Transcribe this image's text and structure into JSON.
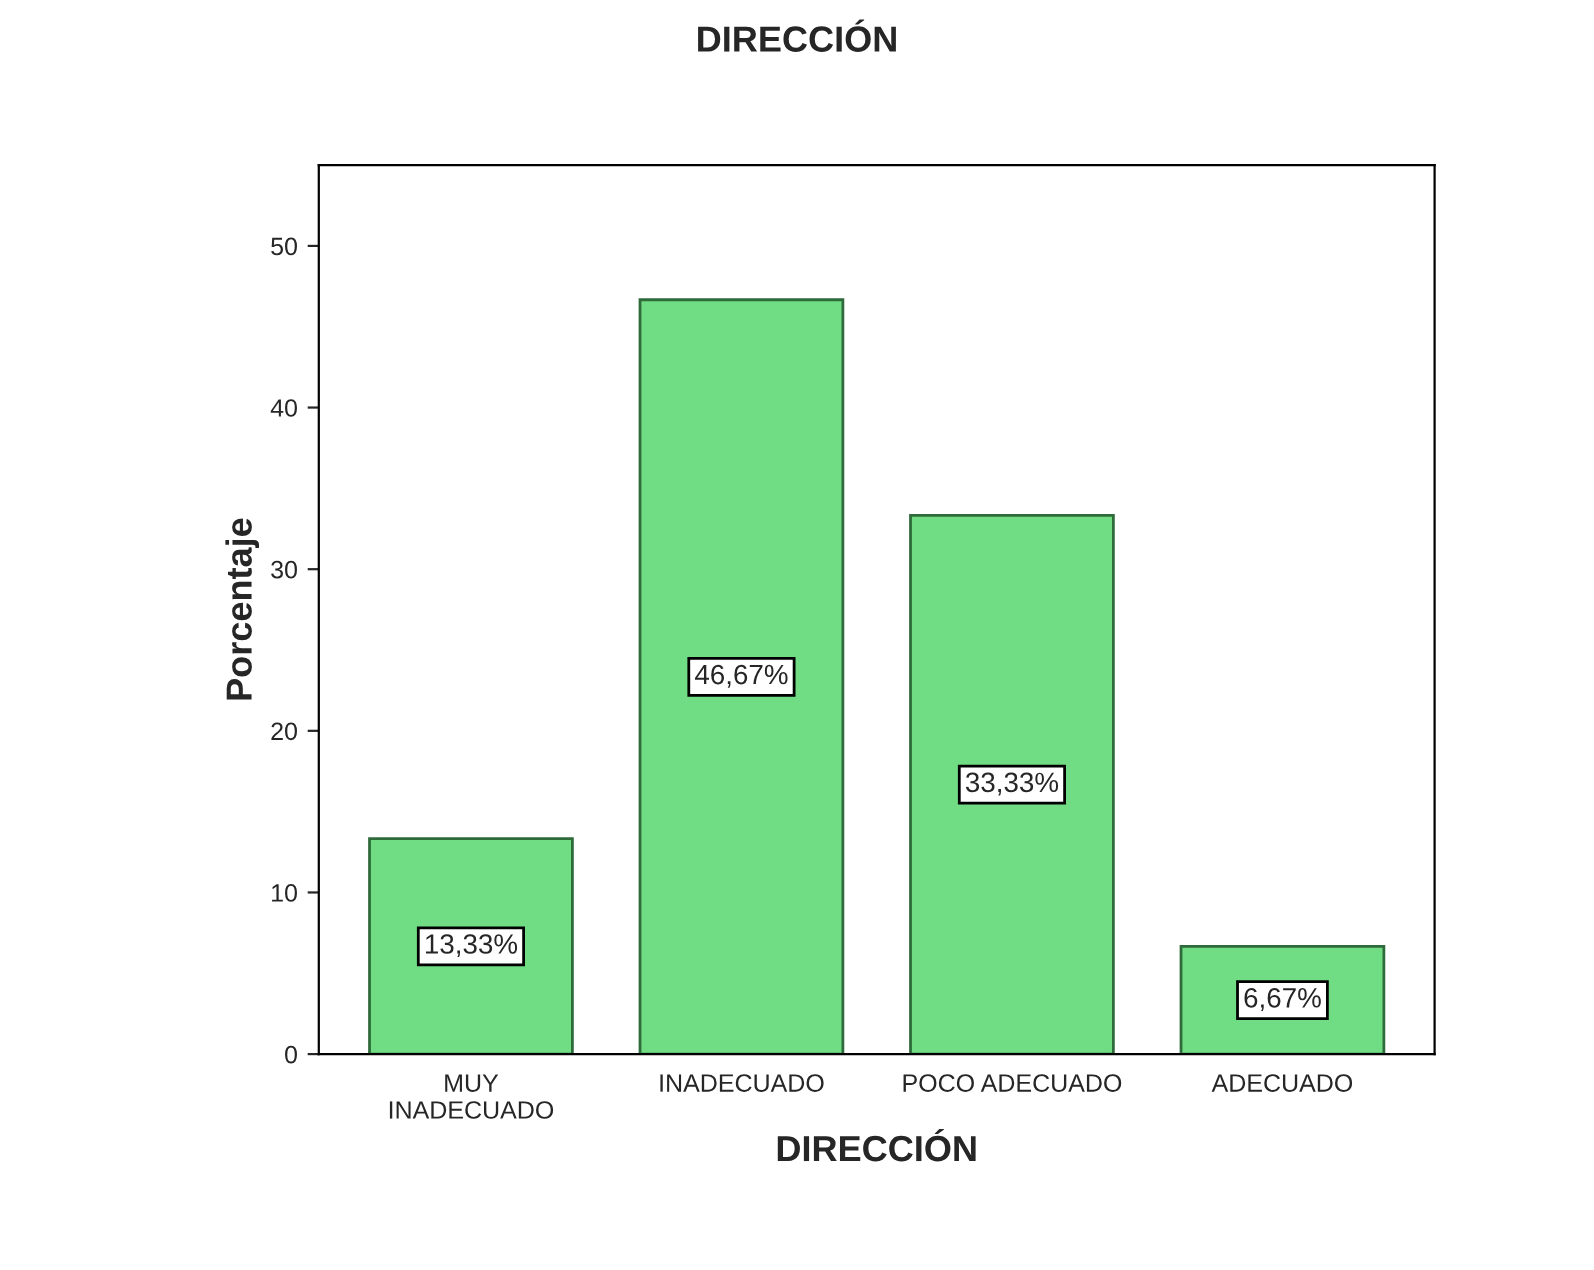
{
  "chart_data": {
    "type": "bar",
    "title": "DIRECCIÓN",
    "xlabel": "DIRECCIÓN",
    "ylabel": "Porcentaje",
    "categories": [
      "MUY\nINADECUADO",
      "INADECUADO",
      "POCO ADECUADO",
      "ADECUADO"
    ],
    "values": [
      13.33,
      46.67,
      33.33,
      6.67
    ],
    "value_labels": [
      "13,33%",
      "46,67%",
      "33,33%",
      "6,67%"
    ],
    "color": "#70dc84",
    "ylim": [
      0,
      55
    ],
    "yticks": [
      0,
      10,
      20,
      30,
      40,
      50
    ],
    "grid": false,
    "legend": false
  }
}
